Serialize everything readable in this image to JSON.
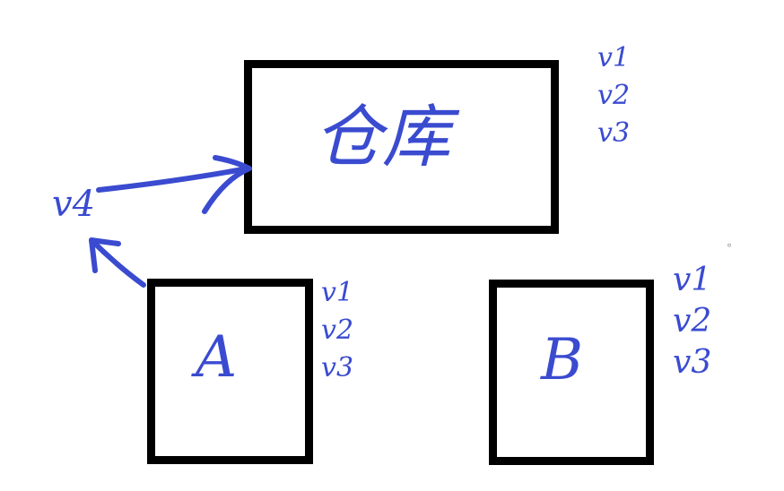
{
  "diagram": {
    "warehouse": {
      "label": "仓库",
      "versions": [
        "v1",
        "v2",
        "v3"
      ]
    },
    "node_a": {
      "label": "A",
      "versions": [
        "v1",
        "v2",
        "v3"
      ]
    },
    "node_b": {
      "label": "B",
      "versions": [
        "v1",
        "v2",
        "v3"
      ]
    },
    "a_version": {
      "label": "v4"
    },
    "ink_color": "#3a4bd0",
    "box_color": "#000000"
  },
  "dot": "°"
}
